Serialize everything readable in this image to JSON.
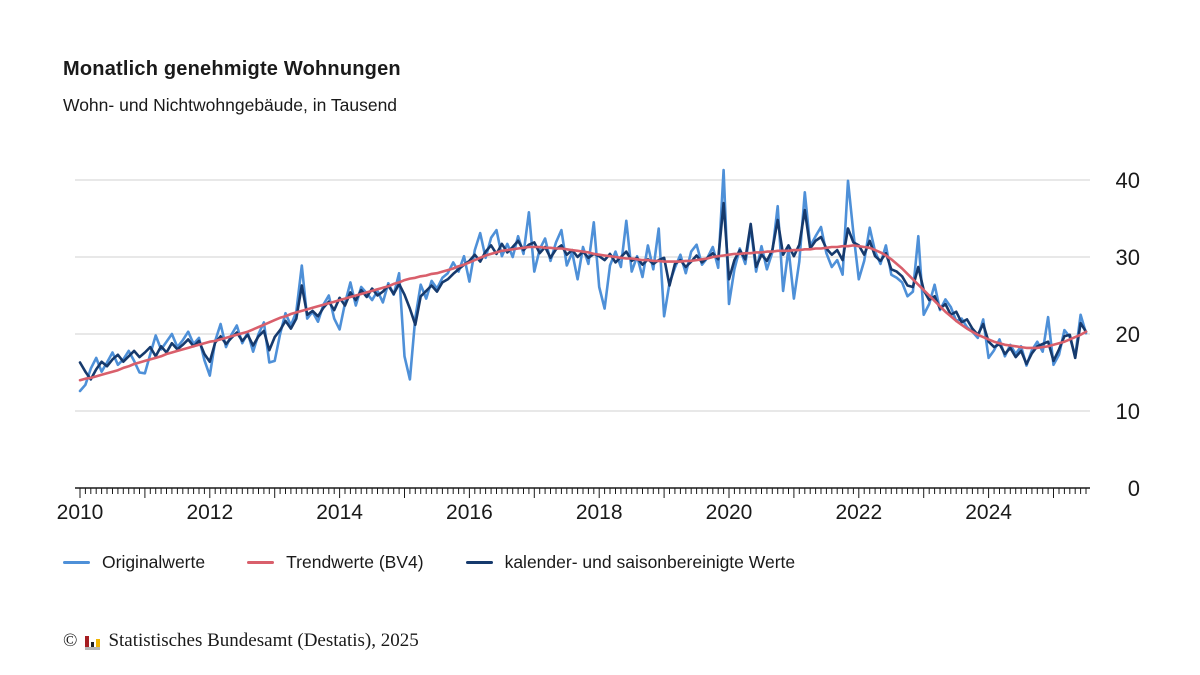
{
  "header": {
    "title": "Monatlich genehmigte Wohnungen",
    "subtitle": "Wohn- und Nichtwohngebäude, in Tausend"
  },
  "legend": {
    "items": [
      {
        "label": "Originalwerte",
        "color": "#4e90d8"
      },
      {
        "label": "Trendwerte (BV4)",
        "color": "#d95f6b"
      },
      {
        "label": "kalender- und saisonbereinigte Werte",
        "color": "#163a6d"
      }
    ]
  },
  "footer": {
    "copyright_symbol": "©",
    "source": "Statistisches Bundesamt (Destatis), 2025"
  },
  "chart_data": {
    "type": "line",
    "title": "Monatlich genehmigte Wohnungen",
    "subtitle": "Wohn- und Nichtwohngebäude, in Tausend",
    "unit": "Tausend",
    "x_months_start": "2010-01",
    "x_months_end": "2025-07",
    "x_tick_labels": [
      "2010",
      "2012",
      "2014",
      "2016",
      "2018",
      "2020",
      "2022",
      "2024"
    ],
    "x_label_interval_months": 24,
    "ylim": [
      0,
      40
    ],
    "yticks": [
      0,
      10,
      20,
      30,
      40
    ],
    "grid": "horizontal",
    "legend_position": "bottom",
    "series": [
      {
        "name": "Originalwerte",
        "color": "#4e90d8",
        "values": [
          12.6,
          13.4,
          15.5,
          16.9,
          15.1,
          16.3,
          17.6,
          16.0,
          16.7,
          17.8,
          16.5,
          15.0,
          14.9,
          17.4,
          19.8,
          18.0,
          19.0,
          20.0,
          18.3,
          19.2,
          20.3,
          18.7,
          19.5,
          16.6,
          14.6,
          19.1,
          21.3,
          18.3,
          19.9,
          21.1,
          18.8,
          20.2,
          17.7,
          20.0,
          21.5,
          16.3,
          16.5,
          20.0,
          22.7,
          21.1,
          22.9,
          28.9,
          22.0,
          22.9,
          21.6,
          23.8,
          25.0,
          22.0,
          20.6,
          24.0,
          26.7,
          23.7,
          26.1,
          25.3,
          24.4,
          25.6,
          24.1,
          26.6,
          25.1,
          27.9,
          17.1,
          14.1,
          22.1,
          26.4,
          24.6,
          26.9,
          25.9,
          27.3,
          27.9,
          29.3,
          28.1,
          30.1,
          26.8,
          30.9,
          33.1,
          29.9,
          32.5,
          33.5,
          30.1,
          31.7,
          30.0,
          32.7,
          30.4,
          35.8,
          28.1,
          31.0,
          32.4,
          29.5,
          31.9,
          33.5,
          28.9,
          30.6,
          27.1,
          31.3,
          29.1,
          34.5,
          26.1,
          23.3,
          28.9,
          30.7,
          28.7,
          34.7,
          28.1,
          30.1,
          27.4,
          31.5,
          28.4,
          33.7,
          22.3,
          26.6,
          28.6,
          30.3,
          27.9,
          30.7,
          31.6,
          29.0,
          29.9,
          31.3,
          28.6,
          41.3,
          23.9,
          28.4,
          31.1,
          29.1,
          33.9,
          28.1,
          31.4,
          28.4,
          30.6,
          36.6,
          25.6,
          31.1,
          24.6,
          29.4,
          38.4,
          31.4,
          32.7,
          33.9,
          30.5,
          28.7,
          29.6,
          27.7,
          39.9,
          33.1,
          27.1,
          29.5,
          33.8,
          30.7,
          29.1,
          31.5,
          27.7,
          27.3,
          26.7,
          24.9,
          25.5,
          32.7,
          22.5,
          23.9,
          26.4,
          23.1,
          24.5,
          23.5,
          21.7,
          22.0,
          20.9,
          20.3,
          19.5,
          21.9,
          16.9,
          17.9,
          19.3,
          17.1,
          18.6,
          17.4,
          18.4,
          15.9,
          17.9,
          19.0,
          17.7,
          22.2,
          16.0,
          17.3,
          20.5,
          19.6,
          17.1,
          22.5,
          20.1
        ]
      },
      {
        "name": "kalender- und saisonbereinigte Werte",
        "color": "#163a6d",
        "values": [
          16.3,
          15.1,
          14.1,
          15.4,
          16.4,
          15.8,
          16.7,
          17.3,
          16.4,
          17.1,
          17.8,
          17.0,
          17.6,
          18.3,
          17.1,
          18.4,
          17.6,
          18.8,
          18.0,
          18.6,
          19.3,
          18.4,
          19.1,
          17.4,
          16.4,
          18.9,
          19.7,
          18.7,
          19.5,
          20.2,
          19.1,
          19.9,
          18.5,
          19.7,
          20.4,
          17.9,
          19.6,
          20.5,
          21.7,
          20.7,
          22.0,
          26.3,
          22.5,
          23.0,
          22.3,
          23.4,
          24.2,
          23.1,
          24.7,
          23.7,
          25.4,
          24.4,
          25.7,
          24.8,
          25.9,
          25.0,
          25.5,
          26.3,
          25.2,
          26.5,
          25.1,
          23.3,
          21.2,
          24.9,
          25.6,
          26.3,
          25.5,
          26.7,
          27.1,
          27.8,
          28.4,
          29.0,
          29.5,
          30.3,
          29.4,
          30.7,
          31.5,
          30.4,
          31.7,
          30.6,
          31.3,
          32.1,
          30.9,
          31.6,
          31.9,
          30.5,
          31.3,
          29.9,
          31.0,
          31.5,
          30.3,
          30.9,
          30.0,
          30.7,
          29.9,
          30.4,
          30.1,
          29.6,
          30.4,
          29.3,
          30.0,
          30.7,
          29.5,
          29.9,
          29.0,
          29.7,
          29.1,
          29.6,
          29.9,
          26.3,
          29.1,
          29.6,
          28.7,
          29.4,
          30.2,
          29.3,
          29.9,
          30.5,
          29.7,
          37.0,
          27.1,
          29.6,
          30.9,
          29.7,
          34.3,
          28.7,
          30.3,
          29.5,
          30.9,
          34.8,
          30.3,
          31.5,
          30.1,
          31.6,
          36.1,
          31.1,
          32.1,
          32.6,
          31.1,
          30.3,
          30.9,
          29.6,
          33.7,
          31.9,
          31.5,
          30.3,
          32.1,
          30.1,
          29.5,
          30.5,
          28.4,
          28.1,
          27.5,
          26.3,
          26.1,
          28.7,
          25.7,
          24.4,
          24.9,
          23.3,
          23.9,
          22.5,
          22.9,
          21.5,
          21.9,
          20.7,
          19.9,
          21.3,
          19.0,
          18.3,
          18.7,
          17.4,
          18.2,
          17.0,
          17.8,
          16.1,
          17.5,
          18.4,
          18.7,
          19.0,
          16.5,
          18.0,
          19.7,
          19.9,
          16.9,
          21.4,
          20.3
        ]
      },
      {
        "name": "Trendwerte (BV4)",
        "color": "#d95f6b",
        "values": [
          14.0,
          14.2,
          14.3,
          14.5,
          14.7,
          14.9,
          15.1,
          15.3,
          15.6,
          15.8,
          16.1,
          16.3,
          16.5,
          16.7,
          16.9,
          17.1,
          17.4,
          17.6,
          17.8,
          18.0,
          18.2,
          18.4,
          18.6,
          18.8,
          19.0,
          19.1,
          19.3,
          19.5,
          19.7,
          19.9,
          20.1,
          20.3,
          20.6,
          20.9,
          21.2,
          21.5,
          21.8,
          22.1,
          22.3,
          22.6,
          22.8,
          23.0,
          23.2,
          23.4,
          23.6,
          23.8,
          24.0,
          24.2,
          24.4,
          24.6,
          24.8,
          25.0,
          25.2,
          25.4,
          25.6,
          25.8,
          26.0,
          26.2,
          26.5,
          26.7,
          27.0,
          27.2,
          27.3,
          27.5,
          27.6,
          27.8,
          27.9,
          28.1,
          28.3,
          28.5,
          28.8,
          29.0,
          29.3,
          29.6,
          29.9,
          30.2,
          30.4,
          30.6,
          30.8,
          30.9,
          31.0,
          31.1,
          31.2,
          31.3,
          31.3,
          31.3,
          31.2,
          31.2,
          31.1,
          31.1,
          31.0,
          30.9,
          30.8,
          30.7,
          30.6,
          30.4,
          30.3,
          30.2,
          30.1,
          30.0,
          29.9,
          29.8,
          29.8,
          29.7,
          29.6,
          29.6,
          29.5,
          29.5,
          29.4,
          29.4,
          29.4,
          29.4,
          29.5,
          29.5,
          29.6,
          29.7,
          29.8,
          30.0,
          30.1,
          30.2,
          30.3,
          30.4,
          30.4,
          30.5,
          30.5,
          30.6,
          30.6,
          30.7,
          30.7,
          30.8,
          30.8,
          30.8,
          30.9,
          30.9,
          31.0,
          31.0,
          31.1,
          31.1,
          31.2,
          31.3,
          31.3,
          31.4,
          31.4,
          31.5,
          31.4,
          31.3,
          31.2,
          30.9,
          30.6,
          30.2,
          29.7,
          29.1,
          28.5,
          27.8,
          27.1,
          26.4,
          25.7,
          25.0,
          24.3,
          23.6,
          22.9,
          22.3,
          21.7,
          21.2,
          20.7,
          20.3,
          19.9,
          19.6,
          19.3,
          19.0,
          18.8,
          18.6,
          18.5,
          18.4,
          18.3,
          18.2,
          18.2,
          18.2,
          18.3,
          18.4,
          18.6,
          18.8,
          19.0,
          19.3,
          19.6,
          19.9,
          20.3
        ]
      }
    ]
  }
}
